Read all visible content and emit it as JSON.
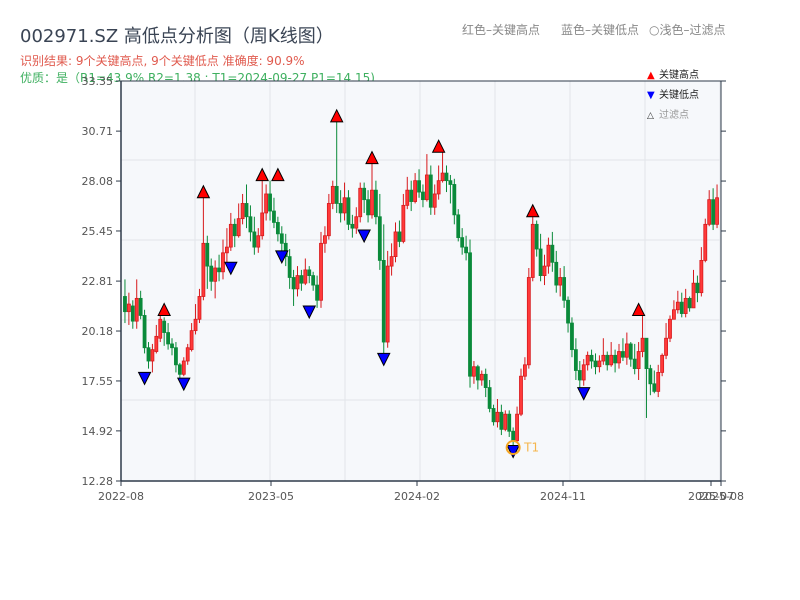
{
  "header": {
    "title": "002971.SZ 高低点分析图（周K线图）",
    "result_line": "识别结果: 9个关键高点, 9个关键低点  准确度: 90.9%",
    "quality_line": "优质：是（R1=43.9%  R2=1.38 ; T1=2024-09-27 P1=14.15)",
    "legend_top": {
      "red": "红色–关键高点",
      "blue": "蓝色–关键低点",
      "filtered": "○浅色–过滤点"
    }
  },
  "colors": {
    "up": "#d7191c",
    "down": "#0a8a3a",
    "high_marker": "#ff0000",
    "low_marker": "#0000ff",
    "t1": "#f5a623",
    "plot_bg": "#f6f8fb",
    "axis": "#2e3a4a",
    "grid": "#e2e5ea"
  },
  "chart_data": {
    "type": "candlestick",
    "title": "002971.SZ 高低点分析图（周K线图）",
    "xlabel": "",
    "ylabel": "",
    "ylim": [
      12.28,
      33.35
    ],
    "yticks": [
      12.28,
      14.92,
      17.55,
      20.18,
      22.81,
      25.45,
      28.08,
      30.71,
      33.35
    ],
    "xticks": [
      "2022-08",
      "2023-05",
      "2024-02",
      "2024-11",
      "2025-07",
      "2025-08"
    ],
    "grid": true,
    "legend": {
      "position": "top-right",
      "entries": [
        "关键高点",
        "关键低点",
        "过滤点"
      ]
    },
    "annotation": {
      "label": "T1",
      "date": "2024-09-27",
      "price": 14.15
    },
    "candles": [
      [
        22.0,
        21.2,
        22.9,
        20.6
      ],
      [
        21.2,
        21.6,
        22.2,
        20.5
      ],
      [
        21.5,
        20.7,
        21.8,
        20.3
      ],
      [
        20.7,
        21.9,
        22.9,
        20.3
      ],
      [
        21.9,
        21.0,
        22.3,
        20.8
      ],
      [
        21.0,
        19.3,
        21.3,
        19.0
      ],
      [
        19.3,
        18.6,
        19.6,
        18.2
      ],
      [
        18.6,
        19.2,
        19.5,
        18.0
      ],
      [
        19.1,
        19.9,
        20.5,
        19.0
      ],
      [
        19.8,
        20.8,
        21.0,
        19.6
      ],
      [
        20.7,
        20.1,
        20.9,
        19.4
      ],
      [
        20.1,
        19.5,
        20.6,
        19.2
      ],
      [
        19.5,
        19.3,
        19.8,
        18.9
      ],
      [
        19.3,
        18.4,
        19.6,
        18.0
      ],
      [
        18.4,
        17.9,
        18.5,
        17.7
      ],
      [
        17.9,
        18.6,
        18.8,
        17.8
      ],
      [
        18.6,
        19.3,
        19.5,
        18.4
      ],
      [
        19.2,
        20.2,
        20.6,
        19.1
      ],
      [
        20.2,
        20.8,
        21.6,
        20.0
      ],
      [
        20.8,
        22.0,
        22.4,
        20.6
      ],
      [
        22.0,
        24.8,
        27.2,
        21.8
      ],
      [
        24.8,
        23.6,
        25.2,
        22.4
      ],
      [
        23.6,
        22.8,
        24.0,
        22.3
      ],
      [
        22.8,
        23.5,
        23.9,
        21.9
      ],
      [
        23.5,
        23.3,
        24.2,
        22.8
      ],
      [
        23.3,
        24.3,
        25.0,
        22.9
      ],
      [
        24.3,
        24.6,
        25.6,
        23.8
      ],
      [
        24.6,
        25.8,
        26.4,
        24.4
      ],
      [
        25.8,
        25.2,
        26.1,
        24.6
      ],
      [
        25.2,
        26.1,
        26.9,
        25.1
      ],
      [
        26.1,
        26.9,
        27.4,
        25.8
      ],
      [
        26.9,
        26.2,
        27.9,
        25.6
      ],
      [
        26.2,
        25.4,
        26.8,
        24.9
      ],
      [
        25.4,
        24.6,
        26.2,
        24.2
      ],
      [
        24.6,
        25.2,
        25.6,
        24.3
      ],
      [
        25.2,
        26.4,
        28.1,
        25.0
      ],
      [
        26.4,
        27.4,
        27.9,
        26.0
      ],
      [
        27.4,
        26.5,
        28.1,
        26.0
      ],
      [
        26.5,
        25.9,
        27.2,
        25.6
      ],
      [
        25.9,
        25.3,
        26.2,
        24.9
      ],
      [
        25.3,
        24.8,
        25.7,
        24.4
      ],
      [
        24.8,
        24.1,
        25.3,
        23.6
      ],
      [
        24.1,
        23.0,
        24.5,
        22.4
      ],
      [
        23.0,
        22.4,
        23.4,
        21.5
      ],
      [
        22.4,
        23.1,
        23.6,
        22.0
      ],
      [
        23.1,
        22.7,
        23.4,
        22.3
      ],
      [
        22.7,
        23.4,
        24.0,
        22.6
      ],
      [
        23.4,
        23.1,
        23.6,
        22.7
      ],
      [
        23.1,
        22.6,
        23.3,
        22.3
      ],
      [
        22.6,
        21.8,
        23.1,
        21.4
      ],
      [
        21.8,
        24.8,
        25.4,
        21.4
      ],
      [
        24.8,
        25.2,
        25.7,
        24.3
      ],
      [
        25.2,
        26.9,
        27.4,
        25.0
      ],
      [
        26.9,
        27.8,
        28.1,
        26.6
      ],
      [
        27.8,
        26.9,
        31.2,
        26.4
      ],
      [
        26.9,
        26.4,
        27.6,
        25.9
      ],
      [
        26.4,
        27.2,
        28.0,
        26.0
      ],
      [
        27.2,
        25.8,
        27.6,
        25.5
      ],
      [
        25.8,
        25.6,
        26.3,
        25.1
      ],
      [
        25.6,
        26.2,
        26.7,
        25.3
      ],
      [
        26.2,
        27.7,
        28.0,
        25.9
      ],
      [
        27.7,
        27.1,
        28.0,
        26.4
      ],
      [
        27.1,
        26.3,
        27.6,
        25.9
      ],
      [
        26.3,
        27.6,
        29.0,
        26.1
      ],
      [
        27.6,
        26.2,
        28.1,
        25.8
      ],
      [
        26.2,
        23.9,
        27.4,
        23.4
      ],
      [
        23.9,
        19.6,
        25.8,
        19.0
      ],
      [
        19.6,
        23.6,
        24.4,
        19.3
      ],
      [
        23.6,
        24.1,
        24.8,
        23.1
      ],
      [
        24.1,
        25.4,
        25.9,
        23.8
      ],
      [
        25.4,
        24.9,
        26.0,
        24.6
      ],
      [
        24.9,
        26.8,
        27.4,
        24.8
      ],
      [
        26.8,
        27.6,
        28.3,
        26.6
      ],
      [
        27.6,
        27.0,
        28.1,
        26.5
      ],
      [
        27.0,
        28.1,
        28.5,
        26.9
      ],
      [
        28.1,
        27.5,
        28.7,
        27.2
      ],
      [
        27.5,
        27.1,
        27.9,
        26.7
      ],
      [
        27.1,
        28.4,
        29.5,
        27.0
      ],
      [
        28.4,
        26.7,
        28.9,
        26.3
      ],
      [
        26.7,
        27.4,
        27.9,
        26.3
      ],
      [
        27.4,
        28.1,
        28.9,
        27.1
      ],
      [
        28.1,
        28.5,
        29.6,
        28.0
      ],
      [
        28.5,
        28.1,
        28.9,
        27.5
      ],
      [
        28.1,
        27.9,
        28.4,
        26.9
      ],
      [
        27.9,
        26.3,
        28.2,
        25.8
      ],
      [
        26.3,
        25.1,
        26.6,
        24.9
      ],
      [
        25.1,
        24.6,
        25.6,
        24.2
      ],
      [
        24.6,
        24.3,
        25.2,
        23.9
      ],
      [
        24.3,
        17.8,
        25.0,
        17.2
      ],
      [
        17.8,
        18.3,
        18.6,
        17.4
      ],
      [
        18.3,
        17.6,
        18.4,
        17.1
      ],
      [
        17.6,
        17.9,
        18.1,
        17.3
      ],
      [
        17.9,
        17.2,
        18.2,
        16.7
      ],
      [
        17.2,
        16.1,
        17.6,
        15.9
      ],
      [
        16.1,
        15.4,
        16.3,
        15.2
      ],
      [
        15.4,
        15.9,
        16.6,
        15.1
      ],
      [
        15.9,
        15.0,
        16.3,
        14.7
      ],
      [
        15.0,
        15.8,
        16.0,
        14.9
      ],
      [
        15.8,
        14.9,
        16.0,
        14.6
      ],
      [
        14.9,
        14.4,
        15.1,
        14.15
      ],
      [
        14.4,
        15.8,
        16.2,
        14.3
      ],
      [
        15.8,
        17.8,
        18.2,
        15.7
      ],
      [
        17.8,
        18.4,
        18.8,
        17.6
      ],
      [
        18.4,
        23.0,
        23.5,
        18.2
      ],
      [
        23.0,
        25.8,
        26.2,
        22.8
      ],
      [
        25.8,
        24.5,
        26.0,
        24.1
      ],
      [
        24.5,
        23.1,
        25.3,
        22.8
      ],
      [
        23.1,
        23.6,
        24.2,
        22.6
      ],
      [
        23.6,
        24.7,
        25.1,
        23.2
      ],
      [
        24.7,
        23.8,
        25.4,
        23.3
      ],
      [
        23.8,
        22.6,
        24.4,
        22.2
      ],
      [
        22.6,
        23.0,
        23.5,
        22.0
      ],
      [
        23.0,
        21.8,
        23.6,
        21.4
      ],
      [
        21.8,
        20.6,
        22.0,
        20.1
      ],
      [
        20.6,
        19.2,
        20.9,
        18.8
      ],
      [
        19.2,
        18.1,
        19.8,
        17.6
      ],
      [
        18.1,
        17.6,
        18.6,
        17.2
      ],
      [
        17.6,
        18.4,
        18.7,
        17.3
      ],
      [
        18.4,
        18.9,
        19.1,
        18.1
      ],
      [
        18.9,
        18.6,
        19.2,
        18.2
      ],
      [
        18.6,
        18.3,
        19.0,
        17.9
      ],
      [
        18.3,
        18.6,
        18.9,
        18.0
      ],
      [
        18.6,
        18.9,
        19.8,
        18.4
      ],
      [
        18.9,
        18.4,
        19.1,
        18.1
      ],
      [
        18.4,
        18.9,
        19.6,
        18.3
      ],
      [
        18.9,
        18.5,
        19.2,
        18.0
      ],
      [
        18.5,
        19.1,
        19.5,
        18.2
      ],
      [
        19.1,
        18.8,
        19.8,
        18.6
      ],
      [
        18.8,
        19.5,
        20.1,
        18.4
      ],
      [
        19.5,
        18.7,
        19.6,
        18.3
      ],
      [
        18.7,
        18.2,
        19.5,
        17.9
      ],
      [
        18.2,
        19.1,
        19.6,
        17.6
      ],
      [
        19.1,
        19.8,
        21.0,
        18.8
      ],
      [
        19.8,
        18.2,
        19.8,
        15.6
      ],
      [
        18.2,
        17.4,
        18.4,
        16.8
      ],
      [
        17.4,
        17.0,
        18.1,
        16.9
      ],
      [
        17.0,
        18.0,
        18.4,
        16.7
      ],
      [
        18.0,
        18.9,
        19.0,
        17.8
      ],
      [
        18.9,
        19.8,
        20.6,
        18.7
      ],
      [
        19.8,
        20.8,
        21.0,
        19.6
      ],
      [
        20.8,
        21.3,
        21.8,
        20.9
      ],
      [
        21.3,
        21.7,
        22.3,
        21.1
      ],
      [
        21.7,
        21.1,
        22.2,
        20.9
      ],
      [
        21.1,
        21.9,
        22.4,
        20.9
      ],
      [
        21.9,
        21.4,
        22.0,
        21.2
      ],
      [
        21.4,
        22.7,
        23.4,
        21.6
      ],
      [
        22.7,
        22.2,
        23.1,
        21.7
      ],
      [
        22.2,
        23.9,
        24.6,
        22.0
      ],
      [
        23.9,
        25.8,
        26.1,
        23.8
      ],
      [
        25.8,
        27.1,
        27.6,
        25.7
      ],
      [
        27.1,
        25.8,
        27.7,
        25.5
      ],
      [
        25.8,
        27.2,
        27.9,
        25.6
      ]
    ],
    "key_highs": [
      {
        "index": 10,
        "price": 21.0
      },
      {
        "index": 20,
        "price": 27.2
      },
      {
        "index": 35,
        "price": 28.1
      },
      {
        "index": 39,
        "price": 28.1
      },
      {
        "index": 54,
        "price": 31.2
      },
      {
        "index": 63,
        "price": 29.0
      },
      {
        "index": 80,
        "price": 29.6
      },
      {
        "index": 104,
        "price": 26.2
      },
      {
        "index": 131,
        "price": 21.0
      }
    ],
    "key_lows": [
      {
        "index": 5,
        "price": 18.0
      },
      {
        "index": 15,
        "price": 17.7
      },
      {
        "index": 27,
        "price": 23.8
      },
      {
        "index": 40,
        "price": 24.4
      },
      {
        "index": 47,
        "price": 21.5
      },
      {
        "index": 61,
        "price": 25.5
      },
      {
        "index": 66,
        "price": 19.0
      },
      {
        "index": 99,
        "price": 14.15
      },
      {
        "index": 117,
        "price": 17.2
      }
    ]
  }
}
